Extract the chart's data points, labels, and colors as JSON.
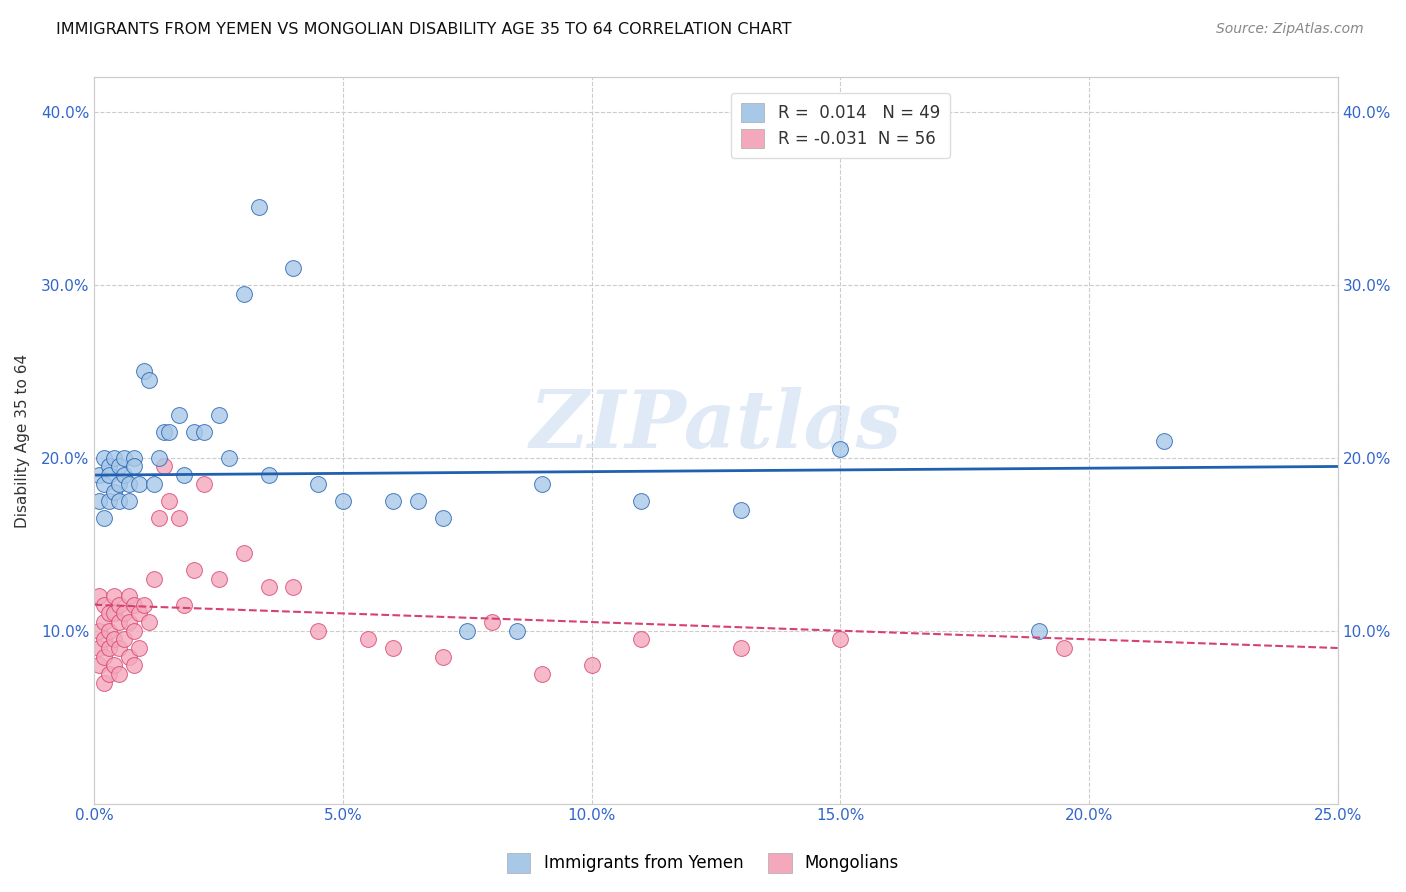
{
  "title": "IMMIGRANTS FROM YEMEN VS MONGOLIAN DISABILITY AGE 35 TO 64 CORRELATION CHART",
  "source": "Source: ZipAtlas.com",
  "ylabel": "Disability Age 35 to 64",
  "xlim": [
    0.0,
    0.25
  ],
  "ylim": [
    0.0,
    0.42
  ],
  "xtick_vals": [
    0.0,
    0.05,
    0.1,
    0.15,
    0.2,
    0.25
  ],
  "ytick_vals": [
    0.0,
    0.1,
    0.2,
    0.3,
    0.4
  ],
  "xtick_labels": [
    "0.0%",
    "5.0%",
    "10.0%",
    "15.0%",
    "20.0%",
    "25.0%"
  ],
  "ytick_labels": [
    "",
    "10.0%",
    "20.0%",
    "30.0%",
    "40.0%"
  ],
  "legend_labels": [
    "Immigrants from Yemen",
    "Mongolians"
  ],
  "R_yemen": 0.014,
  "N_yemen": 49,
  "R_mongolian": -0.031,
  "N_mongolian": 56,
  "color_yemen": "#a8c8e8",
  "color_mongolian": "#f4a8bc",
  "line_color_yemen": "#2060b0",
  "line_color_mongolian": "#d84070",
  "watermark": "ZIPatlas",
  "yemen_x": [
    0.001,
    0.001,
    0.002,
    0.002,
    0.002,
    0.003,
    0.003,
    0.003,
    0.004,
    0.004,
    0.005,
    0.005,
    0.005,
    0.006,
    0.006,
    0.007,
    0.007,
    0.008,
    0.008,
    0.009,
    0.01,
    0.011,
    0.012,
    0.013,
    0.014,
    0.015,
    0.017,
    0.018,
    0.02,
    0.022,
    0.025,
    0.027,
    0.03,
    0.033,
    0.035,
    0.04,
    0.045,
    0.05,
    0.06,
    0.065,
    0.07,
    0.075,
    0.085,
    0.09,
    0.11,
    0.13,
    0.15,
    0.19,
    0.215
  ],
  "yemen_y": [
    0.19,
    0.175,
    0.2,
    0.185,
    0.165,
    0.195,
    0.175,
    0.19,
    0.18,
    0.2,
    0.195,
    0.185,
    0.175,
    0.19,
    0.2,
    0.185,
    0.175,
    0.2,
    0.195,
    0.185,
    0.25,
    0.245,
    0.185,
    0.2,
    0.215,
    0.215,
    0.225,
    0.19,
    0.215,
    0.215,
    0.225,
    0.2,
    0.295,
    0.345,
    0.19,
    0.31,
    0.185,
    0.175,
    0.175,
    0.175,
    0.165,
    0.1,
    0.1,
    0.185,
    0.175,
    0.17,
    0.205,
    0.1,
    0.21
  ],
  "mongolian_x": [
    0.001,
    0.001,
    0.001,
    0.001,
    0.002,
    0.002,
    0.002,
    0.002,
    0.002,
    0.003,
    0.003,
    0.003,
    0.003,
    0.004,
    0.004,
    0.004,
    0.004,
    0.005,
    0.005,
    0.005,
    0.005,
    0.006,
    0.006,
    0.007,
    0.007,
    0.007,
    0.008,
    0.008,
    0.008,
    0.009,
    0.009,
    0.01,
    0.011,
    0.012,
    0.013,
    0.014,
    0.015,
    0.017,
    0.018,
    0.02,
    0.022,
    0.025,
    0.03,
    0.035,
    0.04,
    0.045,
    0.055,
    0.06,
    0.07,
    0.08,
    0.09,
    0.1,
    0.11,
    0.13,
    0.15,
    0.195
  ],
  "mongolian_y": [
    0.12,
    0.1,
    0.09,
    0.08,
    0.115,
    0.105,
    0.095,
    0.085,
    0.07,
    0.11,
    0.1,
    0.09,
    0.075,
    0.12,
    0.11,
    0.095,
    0.08,
    0.115,
    0.105,
    0.09,
    0.075,
    0.11,
    0.095,
    0.12,
    0.105,
    0.085,
    0.115,
    0.1,
    0.08,
    0.11,
    0.09,
    0.115,
    0.105,
    0.13,
    0.165,
    0.195,
    0.175,
    0.165,
    0.115,
    0.135,
    0.185,
    0.13,
    0.145,
    0.125,
    0.125,
    0.1,
    0.095,
    0.09,
    0.085,
    0.105,
    0.075,
    0.08,
    0.095,
    0.09,
    0.095,
    0.09
  ]
}
